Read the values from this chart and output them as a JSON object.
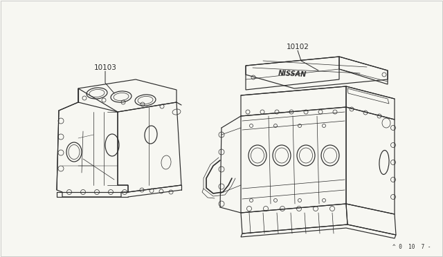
{
  "bg_color": "#f7f7f2",
  "line_color": "#2a2a2a",
  "label1": "10103",
  "label2": "10102",
  "footnote": "^ 0  10  7 -",
  "lw_main": 0.85,
  "lw_detail": 0.5,
  "lw_thin": 0.35
}
